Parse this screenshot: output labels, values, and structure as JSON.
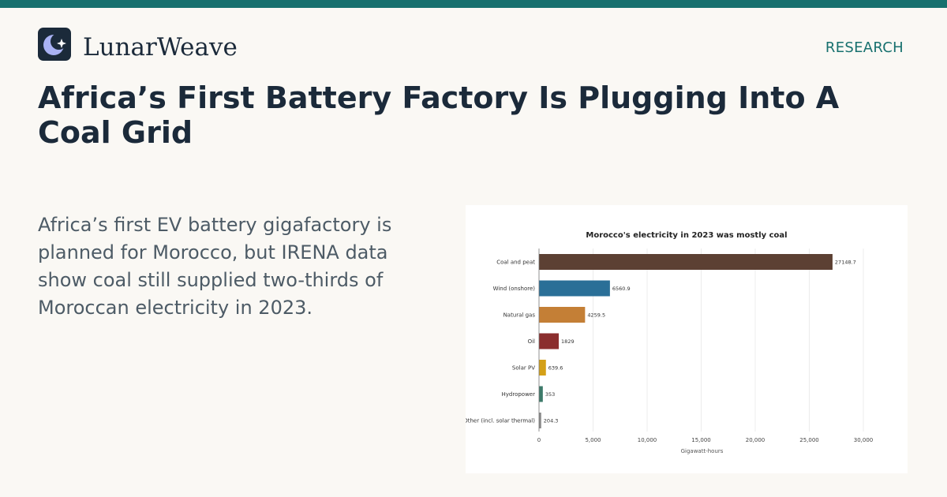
{
  "brand": {
    "name": "LunarWeave",
    "logo_icon": "crescent-moon-sparkle-icon"
  },
  "header": {
    "section_label": "RESEARCH"
  },
  "article": {
    "headline": "Africa’s First Battery Factory Is Plugging Into A Coal Grid",
    "summary": "Africa’s first EV battery gigafactory is planned for Morocco, but IRENA data show coal still supplied two-thirds of Moroccan electricity in 2023."
  },
  "colors": {
    "accent": "#17706e",
    "navy": "#1b2a3a"
  },
  "chart_data": {
    "type": "bar",
    "orientation": "horizontal",
    "title": "Morocco's electricity in 2023 was mostly coal",
    "xlabel": "Gigawatt-hours",
    "ylabel": "",
    "xlim": [
      0,
      32000
    ],
    "xticks": [
      0,
      5000,
      10000,
      15000,
      20000,
      25000,
      30000
    ],
    "xtick_labels": [
      "0",
      "5,000",
      "10,000",
      "15,000",
      "20,000",
      "25,000",
      "30,000"
    ],
    "grid": "vertical",
    "legend": "none",
    "categories": [
      "Coal and peat",
      "Wind (onshore)",
      "Natural gas",
      "Oil",
      "Solar PV",
      "Hydropower",
      "Other (incl. solar thermal)"
    ],
    "values": [
      27148.7,
      6560.9,
      4259.5,
      1829,
      639.6,
      353,
      204.3
    ],
    "value_labels": [
      "27148.7",
      "6560.9",
      "4259.5",
      "1829",
      "639.6",
      "353",
      "204.3"
    ],
    "colors": [
      "#5c4033",
      "#2a6f97",
      "#c47f36",
      "#8b2e2e",
      "#d4a017",
      "#3d7a6a",
      "#8a8a8a"
    ]
  }
}
